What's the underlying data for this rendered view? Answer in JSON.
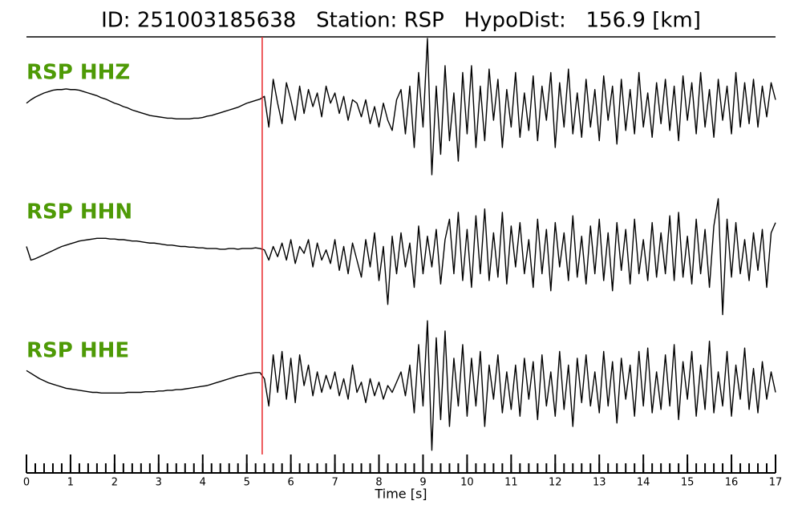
{
  "chart_data": {
    "type": "waveform",
    "title": "ID: 251003185638   Station: RSP   HypoDist:   156.9 [km]",
    "xlabel": "Time [s]",
    "xlim": [
      0,
      17
    ],
    "xticks": [
      0,
      1,
      2,
      3,
      4,
      5,
      6,
      7,
      8,
      9,
      10,
      11,
      12,
      13,
      14,
      15,
      16,
      17
    ],
    "xminor_step": 0.2,
    "ylim": [
      -1,
      1
    ],
    "grid": false,
    "pick": 5.35,
    "pick_color": "#e8272a",
    "label_color": "#4e9a06",
    "line_color": "#000000",
    "x": [
      0,
      0.1,
      0.2,
      0.3,
      0.4,
      0.5,
      0.6,
      0.7,
      0.8,
      0.9,
      1,
      1.1,
      1.2,
      1.3,
      1.4,
      1.5,
      1.6,
      1.7,
      1.8,
      1.9,
      2,
      2.1,
      2.2,
      2.3,
      2.4,
      2.5,
      2.6,
      2.7,
      2.8,
      2.9,
      3,
      3.1,
      3.2,
      3.3,
      3.4,
      3.5,
      3.6,
      3.7,
      3.8,
      3.9,
      4,
      4.1,
      4.2,
      4.3,
      4.4,
      4.5,
      4.6,
      4.7,
      4.8,
      4.9,
      5,
      5.1,
      5.2,
      5.3,
      5.4,
      5.5,
      5.6,
      5.7,
      5.8,
      5.9,
      6,
      6.1,
      6.2,
      6.3,
      6.4,
      6.5,
      6.6,
      6.7,
      6.8,
      6.9,
      7,
      7.1,
      7.2,
      7.3,
      7.4,
      7.5,
      7.6,
      7.7,
      7.8,
      7.9,
      8,
      8.1,
      8.2,
      8.3,
      8.4,
      8.5,
      8.6,
      8.7,
      8.8,
      8.9,
      9,
      9.1,
      9.2,
      9.3,
      9.4,
      9.5,
      9.6,
      9.7,
      9.8,
      9.9,
      10,
      10.1,
      10.2,
      10.3,
      10.4,
      10.5,
      10.6,
      10.7,
      10.8,
      10.9,
      11,
      11.1,
      11.2,
      11.3,
      11.4,
      11.5,
      11.6,
      11.7,
      11.8,
      11.9,
      12,
      12.1,
      12.2,
      12.3,
      12.4,
      12.5,
      12.6,
      12.7,
      12.8,
      12.9,
      13,
      13.1,
      13.2,
      13.3,
      13.4,
      13.5,
      13.6,
      13.7,
      13.8,
      13.9,
      14,
      14.1,
      14.2,
      14.3,
      14.4,
      14.5,
      14.6,
      14.7,
      14.8,
      14.9,
      15,
      15.1,
      15.2,
      15.3,
      15.4,
      15.5,
      15.6,
      15.7,
      15.8,
      15.9,
      16,
      16.1,
      16.2,
      16.3,
      16.4,
      16.5,
      16.6,
      16.7,
      16.8,
      16.9,
      17
    ],
    "series": [
      {
        "name": "RSP HHZ",
        "values": [
          0.05,
          0.1,
          0.14,
          0.17,
          0.2,
          0.22,
          0.24,
          0.25,
          0.25,
          0.26,
          0.25,
          0.25,
          0.24,
          0.22,
          0.2,
          0.18,
          0.16,
          0.13,
          0.11,
          0.08,
          0.05,
          0.03,
          0.0,
          -0.02,
          -0.05,
          -0.07,
          -0.09,
          -0.11,
          -0.13,
          -0.14,
          -0.15,
          -0.16,
          -0.17,
          -0.17,
          -0.18,
          -0.18,
          -0.18,
          -0.18,
          -0.17,
          -0.17,
          -0.16,
          -0.14,
          -0.13,
          -0.11,
          -0.09,
          -0.07,
          -0.05,
          -0.03,
          -0.01,
          0.02,
          0.05,
          0.07,
          0.09,
          0.11,
          0.15,
          -0.3,
          0.4,
          0.05,
          -0.25,
          0.35,
          0.1,
          -0.2,
          0.3,
          -0.1,
          0.25,
          0.0,
          0.2,
          -0.15,
          0.3,
          0.05,
          0.2,
          -0.1,
          0.15,
          -0.2,
          0.1,
          0.05,
          -0.15,
          0.1,
          -0.25,
          0.0,
          -0.3,
          0.05,
          -0.2,
          -0.35,
          0.1,
          0.25,
          -0.4,
          0.3,
          -0.6,
          0.5,
          -0.3,
          1.0,
          -1.0,
          0.3,
          -0.7,
          0.6,
          -0.5,
          0.2,
          -0.8,
          0.5,
          -0.4,
          0.6,
          -0.6,
          0.3,
          -0.5,
          0.55,
          -0.2,
          0.4,
          -0.6,
          0.25,
          -0.3,
          0.5,
          -0.45,
          0.2,
          -0.35,
          0.45,
          -0.5,
          0.3,
          -0.2,
          0.5,
          -0.6,
          0.35,
          -0.3,
          0.55,
          -0.4,
          0.2,
          -0.45,
          0.4,
          -0.3,
          0.25,
          -0.5,
          0.45,
          -0.2,
          0.3,
          -0.55,
          0.4,
          -0.35,
          0.25,
          -0.4,
          0.5,
          -0.3,
          0.2,
          -0.45,
          0.35,
          -0.25,
          0.4,
          -0.35,
          0.3,
          -0.5,
          0.45,
          -0.2,
          0.35,
          -0.4,
          0.5,
          -0.3,
          0.25,
          -0.45,
          0.4,
          -0.2,
          0.3,
          -0.4,
          0.5,
          -0.3,
          0.35,
          -0.25,
          0.4,
          -0.3,
          0.3,
          -0.15,
          0.35,
          0.1
        ]
      },
      {
        "name": "RSP HHN",
        "values": [
          0.1,
          -0.1,
          -0.08,
          -0.05,
          -0.02,
          0.01,
          0.04,
          0.07,
          0.1,
          0.12,
          0.14,
          0.16,
          0.18,
          0.19,
          0.2,
          0.21,
          0.22,
          0.22,
          0.22,
          0.21,
          0.21,
          0.2,
          0.2,
          0.19,
          0.18,
          0.18,
          0.17,
          0.16,
          0.15,
          0.15,
          0.14,
          0.13,
          0.12,
          0.12,
          0.11,
          0.1,
          0.1,
          0.09,
          0.09,
          0.08,
          0.08,
          0.07,
          0.07,
          0.07,
          0.06,
          0.06,
          0.07,
          0.07,
          0.06,
          0.07,
          0.07,
          0.07,
          0.08,
          0.07,
          0.05,
          -0.1,
          0.1,
          -0.05,
          0.15,
          -0.1,
          0.2,
          -0.15,
          0.1,
          0.0,
          0.2,
          -0.2,
          0.15,
          -0.1,
          0.05,
          -0.15,
          0.2,
          -0.25,
          0.1,
          -0.3,
          0.15,
          -0.1,
          -0.35,
          0.2,
          -0.2,
          0.3,
          -0.4,
          0.1,
          -0.75,
          0.25,
          -0.3,
          0.3,
          -0.2,
          0.15,
          -0.5,
          0.4,
          -0.3,
          0.25,
          -0.2,
          0.35,
          -0.45,
          0.2,
          0.5,
          -0.3,
          0.6,
          -0.4,
          0.35,
          -0.5,
          0.55,
          -0.3,
          0.65,
          -0.4,
          0.3,
          -0.35,
          0.6,
          -0.45,
          0.4,
          -0.2,
          0.45,
          -0.3,
          0.2,
          -0.5,
          0.5,
          -0.3,
          0.35,
          -0.55,
          0.45,
          -0.2,
          0.3,
          -0.4,
          0.55,
          -0.35,
          0.25,
          -0.45,
          0.4,
          -0.3,
          0.5,
          -0.4,
          0.3,
          -0.55,
          0.45,
          -0.25,
          0.35,
          -0.45,
          0.5,
          -0.3,
          0.2,
          -0.4,
          0.45,
          -0.35,
          0.3,
          -0.3,
          0.55,
          -0.4,
          0.6,
          -0.35,
          0.25,
          -0.45,
          0.5,
          -0.3,
          0.35,
          -0.5,
          0.4,
          0.8,
          -0.9,
          0.5,
          -0.35,
          0.45,
          -0.3,
          0.2,
          -0.4,
          0.3,
          -0.25,
          0.35,
          -0.5,
          0.3,
          0.45
        ]
      },
      {
        "name": "RSP HHE",
        "values": [
          0.22,
          0.18,
          0.14,
          0.1,
          0.07,
          0.04,
          0.02,
          0.0,
          -0.02,
          -0.04,
          -0.05,
          -0.06,
          -0.07,
          -0.08,
          -0.09,
          -0.1,
          -0.1,
          -0.11,
          -0.11,
          -0.11,
          -0.11,
          -0.11,
          -0.11,
          -0.1,
          -0.1,
          -0.1,
          -0.1,
          -0.09,
          -0.09,
          -0.09,
          -0.08,
          -0.08,
          -0.07,
          -0.07,
          -0.06,
          -0.06,
          -0.05,
          -0.04,
          -0.03,
          -0.02,
          -0.01,
          0.0,
          0.02,
          0.04,
          0.06,
          0.08,
          0.1,
          0.12,
          0.14,
          0.15,
          0.17,
          0.18,
          0.19,
          0.19,
          0.1,
          -0.3,
          0.45,
          -0.1,
          0.5,
          -0.2,
          0.4,
          -0.25,
          0.45,
          0.0,
          0.3,
          -0.15,
          0.2,
          -0.1,
          0.15,
          -0.05,
          0.2,
          -0.15,
          0.1,
          -0.2,
          0.3,
          -0.1,
          0.05,
          -0.25,
          0.1,
          -0.15,
          0.05,
          -0.2,
          0.0,
          -0.1,
          0.05,
          0.2,
          -0.15,
          0.3,
          -0.4,
          0.6,
          -0.3,
          0.95,
          -0.95,
          0.7,
          -0.5,
          0.8,
          -0.6,
          0.4,
          -0.3,
          0.6,
          -0.45,
          0.4,
          -0.3,
          0.5,
          -0.6,
          0.3,
          -0.2,
          0.45,
          -0.4,
          0.2,
          -0.35,
          0.3,
          -0.45,
          0.4,
          -0.2,
          0.35,
          -0.5,
          0.45,
          -0.3,
          0.2,
          -0.45,
          0.5,
          -0.35,
          0.3,
          -0.6,
          0.4,
          -0.25,
          0.45,
          -0.3,
          0.2,
          -0.4,
          0.5,
          -0.3,
          0.35,
          -0.55,
          0.4,
          -0.2,
          0.3,
          -0.45,
          0.5,
          -0.3,
          0.55,
          -0.4,
          0.2,
          -0.35,
          0.45,
          -0.3,
          0.6,
          -0.5,
          0.35,
          -0.2,
          0.5,
          -0.45,
          0.3,
          -0.35,
          0.65,
          -0.4,
          0.2,
          -0.3,
          0.5,
          -0.45,
          0.3,
          -0.2,
          0.55,
          -0.35,
          0.25,
          -0.4,
          0.35,
          -0.2,
          0.2,
          -0.1
        ]
      }
    ]
  }
}
